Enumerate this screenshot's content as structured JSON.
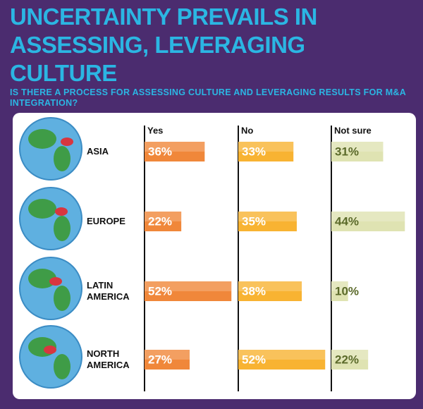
{
  "chart_data": {
    "type": "bar",
    "title": "UNCERTAINTY PREVAILS IN ASSESSING, LEVERAGING CULTURE",
    "subtitle": "IS THERE A PROCESS FOR ASSESSING CULTURE AND LEVERAGING RESULTS FOR M&A INTEGRATION?",
    "categories": [
      "ASIA",
      "EUROPE",
      "LATIN AMERICA",
      "NORTH AMERICA"
    ],
    "series": [
      {
        "name": "Yes",
        "color": "#f0873a",
        "values": [
          36,
          22,
          52,
          27
        ],
        "value_labels": [
          "36%",
          "22%",
          "52%",
          "27%"
        ]
      },
      {
        "name": "No",
        "color": "#f8b332",
        "values": [
          33,
          35,
          38,
          52
        ],
        "value_labels": [
          "33%",
          "35%",
          "38%",
          "52%"
        ]
      },
      {
        "name": "Not sure",
        "color": "#dfe3b2",
        "values": [
          31,
          44,
          10,
          22
        ],
        "value_labels": [
          "31%",
          "44%",
          "10%",
          "22%"
        ]
      }
    ]
  }
}
